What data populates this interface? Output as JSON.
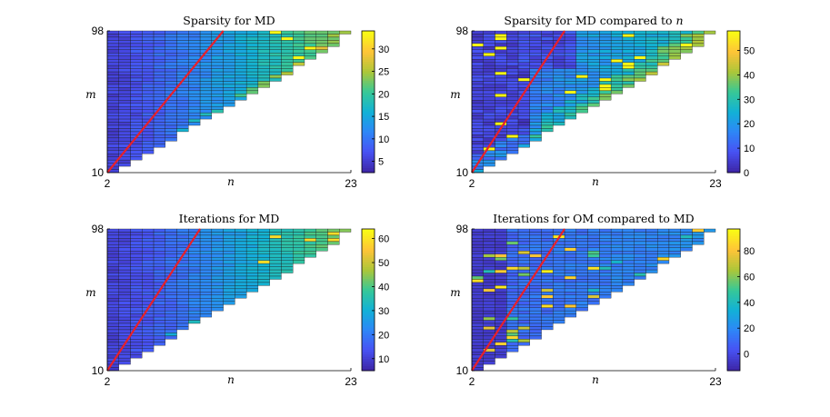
{
  "chart_data": [
    {
      "type": "heatmap",
      "title": "Sparsity for MD",
      "title_main": "Sparsity for MD",
      "title_var": "",
      "xlabel": "n",
      "ylabel": "m",
      "x_ticks": [
        "2",
        "23"
      ],
      "y_ticks": [
        "10",
        "98"
      ],
      "xlim": [
        2,
        23
      ],
      "ylim": [
        10,
        98
      ],
      "colorbar": {
        "colormap": "parula",
        "range": [
          2.5,
          34
        ],
        "ticks": [
          "5",
          "10",
          "15",
          "20",
          "25",
          "30"
        ]
      },
      "red_line": {
        "from": [
          2,
          10
        ],
        "to": [
          12,
          98
        ]
      },
      "value_range": [
        2.5,
        34
      ],
      "grid": false,
      "legend": "none"
    },
    {
      "type": "heatmap",
      "title": "Sparsity for MD compared to n",
      "title_main": "Sparsity for MD compared to",
      "title_var": "n",
      "xlabel": "n",
      "ylabel": "m",
      "x_ticks": [
        "2",
        "23"
      ],
      "y_ticks": [
        "10",
        "98"
      ],
      "xlim": [
        2,
        23
      ],
      "ylim": [
        10,
        98
      ],
      "colorbar": {
        "colormap": "parula",
        "range": [
          0,
          58
        ],
        "ticks": [
          "0",
          "10",
          "20",
          "30",
          "40",
          "50"
        ]
      },
      "red_line": {
        "from": [
          2,
          10
        ],
        "to": [
          10,
          98
        ]
      },
      "value_range": [
        0,
        58
      ],
      "grid": false,
      "legend": "none"
    },
    {
      "type": "heatmap",
      "title": "Iterations for MD",
      "title_main": "Iterations for MD",
      "title_var": "",
      "xlabel": "n",
      "ylabel": "m",
      "x_ticks": [
        "2",
        "23"
      ],
      "y_ticks": [
        "10",
        "98"
      ],
      "xlim": [
        2,
        23
      ],
      "ylim": [
        10,
        98
      ],
      "colorbar": {
        "colormap": "parula",
        "range": [
          5,
          64
        ],
        "ticks": [
          "10",
          "20",
          "30",
          "40",
          "50",
          "60"
        ]
      },
      "red_line": {
        "from": [
          2,
          10
        ],
        "to": [
          10,
          98
        ]
      },
      "value_range": [
        5,
        64
      ],
      "grid": false,
      "legend": "none"
    },
    {
      "type": "heatmap",
      "title": "Iterations for OM compared to MD",
      "title_main": "Iterations for OM compared to MD",
      "title_var": "",
      "xlabel": "n",
      "ylabel": "m",
      "x_ticks": [
        "2",
        "23"
      ],
      "y_ticks": [
        "10",
        "98"
      ],
      "xlim": [
        2,
        23
      ],
      "ylim": [
        10,
        98
      ],
      "colorbar": {
        "colormap": "parula",
        "range": [
          -13,
          97
        ],
        "ticks": [
          "0",
          "20",
          "40",
          "60",
          "80"
        ]
      },
      "red_line": {
        "from": [
          2,
          10
        ],
        "to": [
          10,
          98
        ]
      },
      "value_range": [
        -13,
        97
      ],
      "grid": false,
      "legend": "none"
    }
  ]
}
